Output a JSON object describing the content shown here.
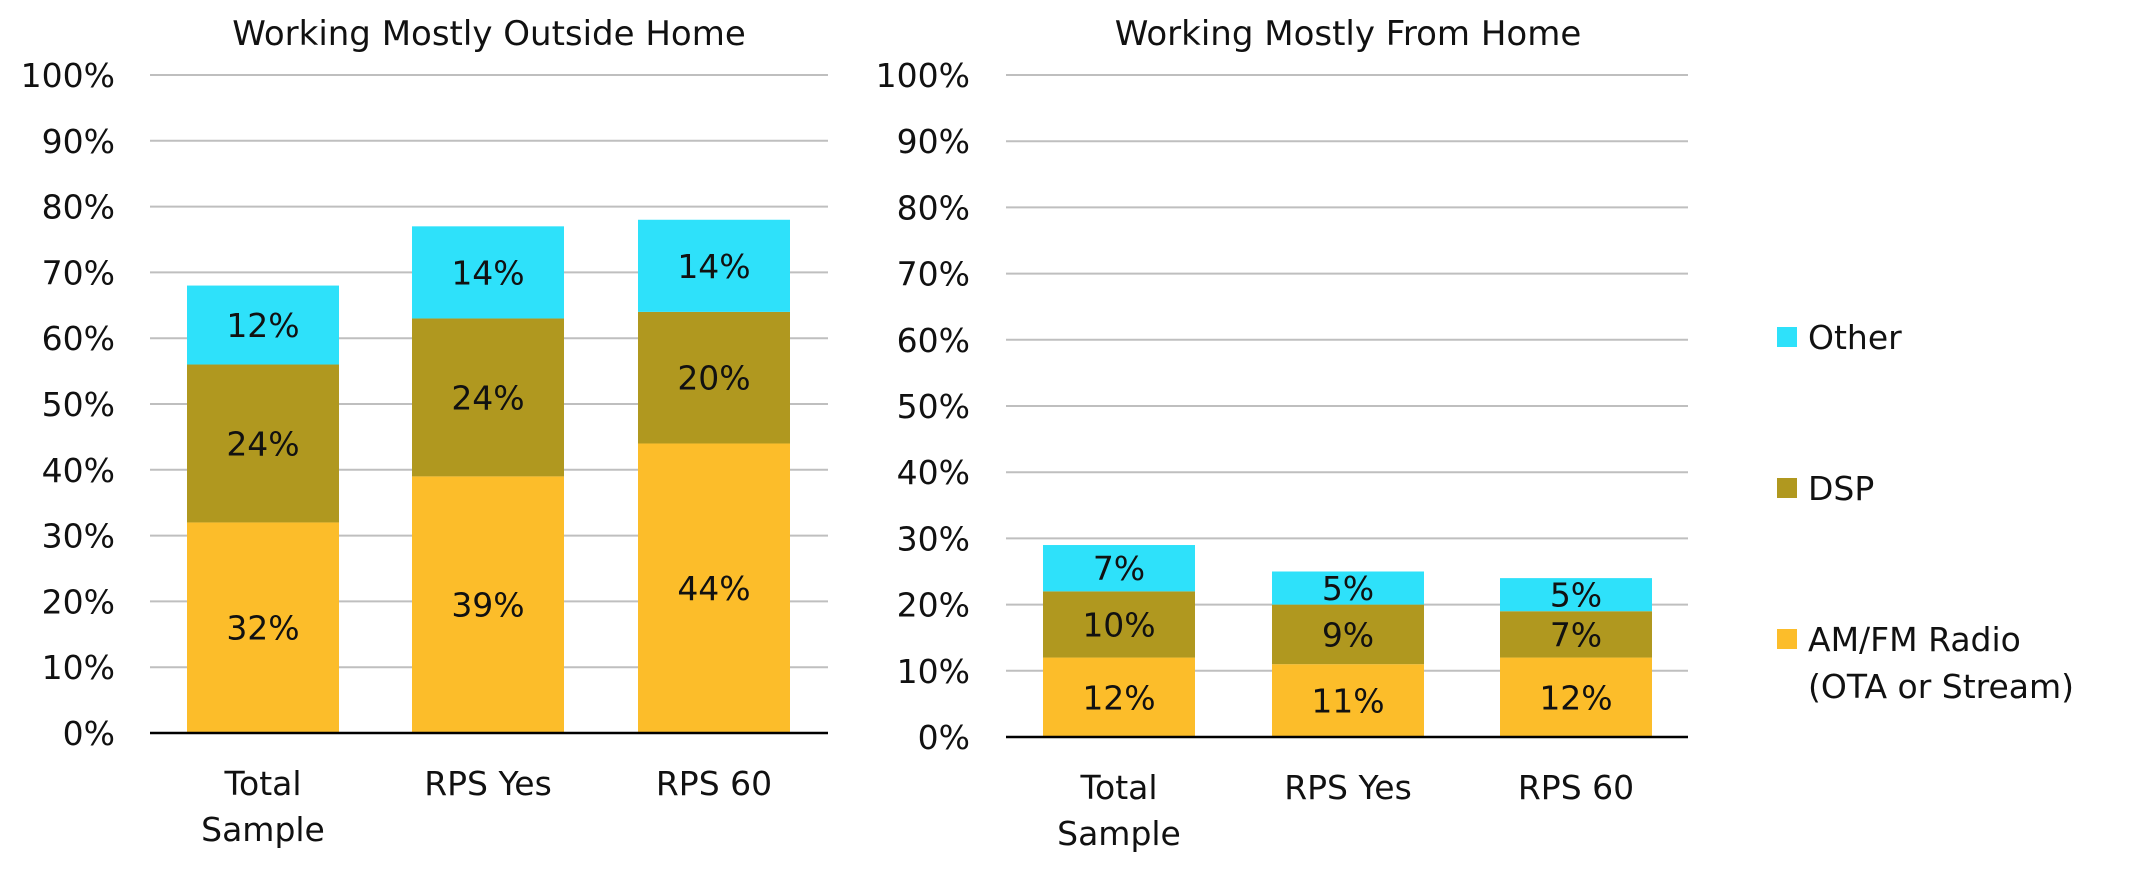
{
  "chart_data": [
    {
      "type": "bar",
      "stacked": true,
      "title": "Working Mostly Outside Home",
      "categories": [
        [
          "Total",
          "Sample"
        ],
        [
          "RPS Yes"
        ],
        [
          "RPS 60"
        ]
      ],
      "series": [
        {
          "name": "AM/FM Radio (OTA or Stream)",
          "values": [
            32,
            39,
            44
          ],
          "labels": [
            "32%",
            "39%",
            "44%"
          ]
        },
        {
          "name": "DSP",
          "values": [
            24,
            24,
            20
          ],
          "labels": [
            "24%",
            "24%",
            "20%"
          ]
        },
        {
          "name": "Other",
          "values": [
            12,
            14,
            14
          ],
          "labels": [
            "12%",
            "14%",
            "14%"
          ]
        }
      ],
      "ylim": [
        0,
        100
      ],
      "yticks": [
        "0%",
        "10%",
        "20%",
        "30%",
        "40%",
        "50%",
        "60%",
        "70%",
        "80%",
        "90%",
        "100%"
      ],
      "grid": true
    },
    {
      "type": "bar",
      "stacked": true,
      "title": "Working Mostly From Home",
      "categories": [
        [
          "Total",
          "Sample"
        ],
        [
          "RPS Yes"
        ],
        [
          "RPS 60"
        ]
      ],
      "series": [
        {
          "name": "AM/FM Radio (OTA or Stream)",
          "values": [
            12,
            11,
            12
          ],
          "labels": [
            "12%",
            "11%",
            "12%"
          ]
        },
        {
          "name": "DSP",
          "values": [
            10,
            9,
            7
          ],
          "labels": [
            "10%",
            "9%",
            "7%"
          ]
        },
        {
          "name": "Other",
          "values": [
            7,
            5,
            5
          ],
          "labels": [
            "7%",
            "5%",
            "5%"
          ]
        }
      ],
      "ylim": [
        0,
        100
      ],
      "yticks": [
        "0%",
        "10%",
        "20%",
        "30%",
        "40%",
        "50%",
        "60%",
        "70%",
        "80%",
        "90%",
        "100%"
      ],
      "grid": true
    }
  ],
  "legend": {
    "placement": "right",
    "items": [
      {
        "lines": [
          "Other"
        ],
        "color": "#2ee1fa"
      },
      {
        "lines": [
          "DSP"
        ],
        "color": "#b0981f"
      },
      {
        "lines": [
          "AM/FM Radio",
          "(OTA or Stream)"
        ],
        "color": "#fcbd2a"
      }
    ]
  },
  "colors": {
    "am_fm": "#fcbd2a",
    "dsp": "#b0981f",
    "other": "#2ee1fa",
    "gridline": "#bfbfbf",
    "axis": "#000000"
  }
}
